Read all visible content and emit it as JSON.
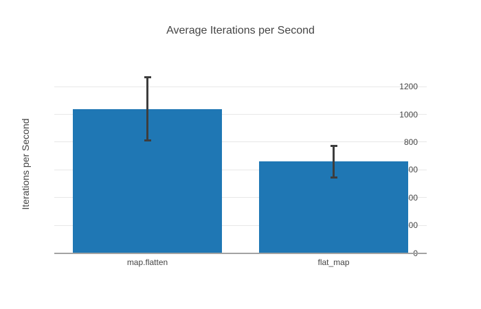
{
  "title": "Average Iterations per Second",
  "chart_data": {
    "type": "bar",
    "title": "Average Iterations per Second",
    "categories": [
      "map.flatten",
      "flat_map"
    ],
    "values": [
      1038,
      661
    ],
    "error_high": [
      1268,
      772
    ],
    "error_low": [
      813,
      546
    ],
    "xlabel": "",
    "ylabel": "Iterations per Second",
    "ylim": [
      0,
      1340
    ],
    "yticks": [
      0,
      200,
      400,
      600,
      800,
      1000,
      1200
    ],
    "grid": true,
    "legend": "none",
    "bar_color": "#1f77b4",
    "error_color": "#3d3d3d",
    "grid_color": "#e7e7e7",
    "axis_line_color": "#a2a2a2",
    "text_color": "#444444",
    "background": "#ffffff"
  }
}
